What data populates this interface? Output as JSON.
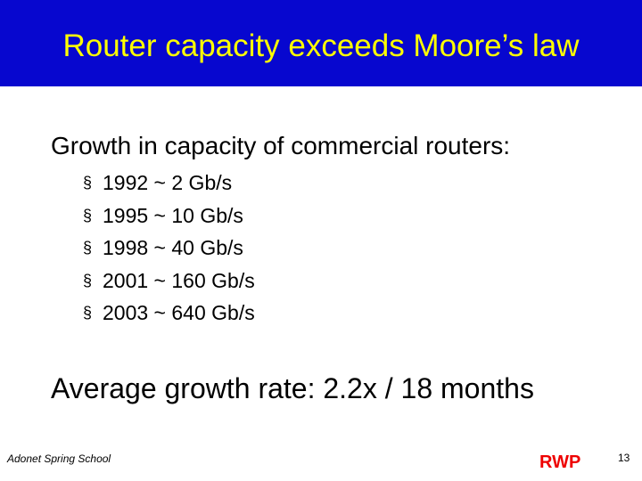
{
  "header": {
    "title": "Router capacity exceeds Moore’s law"
  },
  "body": {
    "intro": "Growth in capacity of commercial routers:",
    "bullet": "§",
    "items": [
      "1992 ~ 2 Gb/s",
      "1995 ~ 10 Gb/s",
      "1998 ~ 40 Gb/s",
      "2001 ~ 160 Gb/s",
      "2003 ~ 640 Gb/s"
    ],
    "summary": "Average growth rate: 2.2x / 18 months"
  },
  "footer": {
    "school": "Adonet Spring School",
    "author": "RWP",
    "page": "13"
  }
}
